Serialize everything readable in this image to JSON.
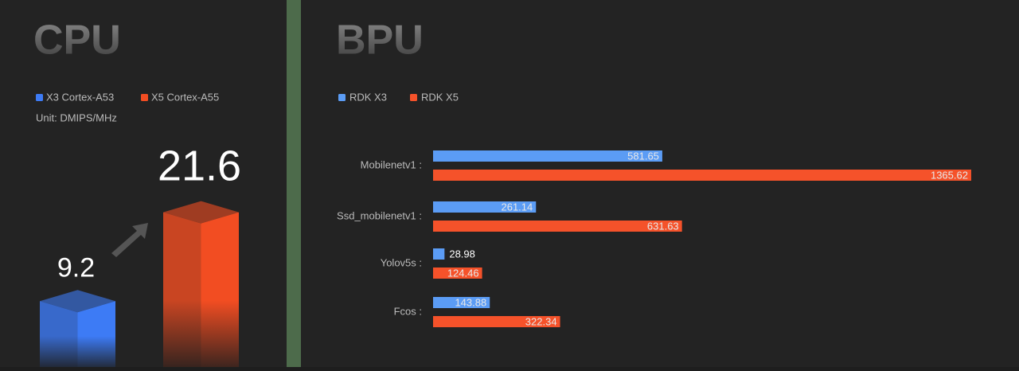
{
  "chart_data": [
    {
      "type": "bar",
      "title": "CPU",
      "unit": "Unit:  DMIPS/MHz",
      "series": [
        {
          "name": "X3 Cortex-A53",
          "color": "#3d7bf5",
          "values": [
            9.2
          ]
        },
        {
          "name": "X5 Cortex-A55",
          "color": "#f24d22",
          "values": [
            21.6
          ]
        }
      ]
    },
    {
      "type": "hbar",
      "title": "BPU",
      "categories": [
        "Mobilenetv1 :",
        "Ssd_mobilenetv1 :",
        "Yolov5s :",
        "Fcos :"
      ],
      "series": [
        {
          "name": "RDK X3",
          "color": "#5b9cf5",
          "values": [
            581.65,
            261.14,
            28.98,
            143.88
          ]
        },
        {
          "name": "RDK X5",
          "color": "#f5522a",
          "values": [
            1365.62,
            631.63,
            124.46,
            322.34
          ]
        }
      ]
    }
  ]
}
